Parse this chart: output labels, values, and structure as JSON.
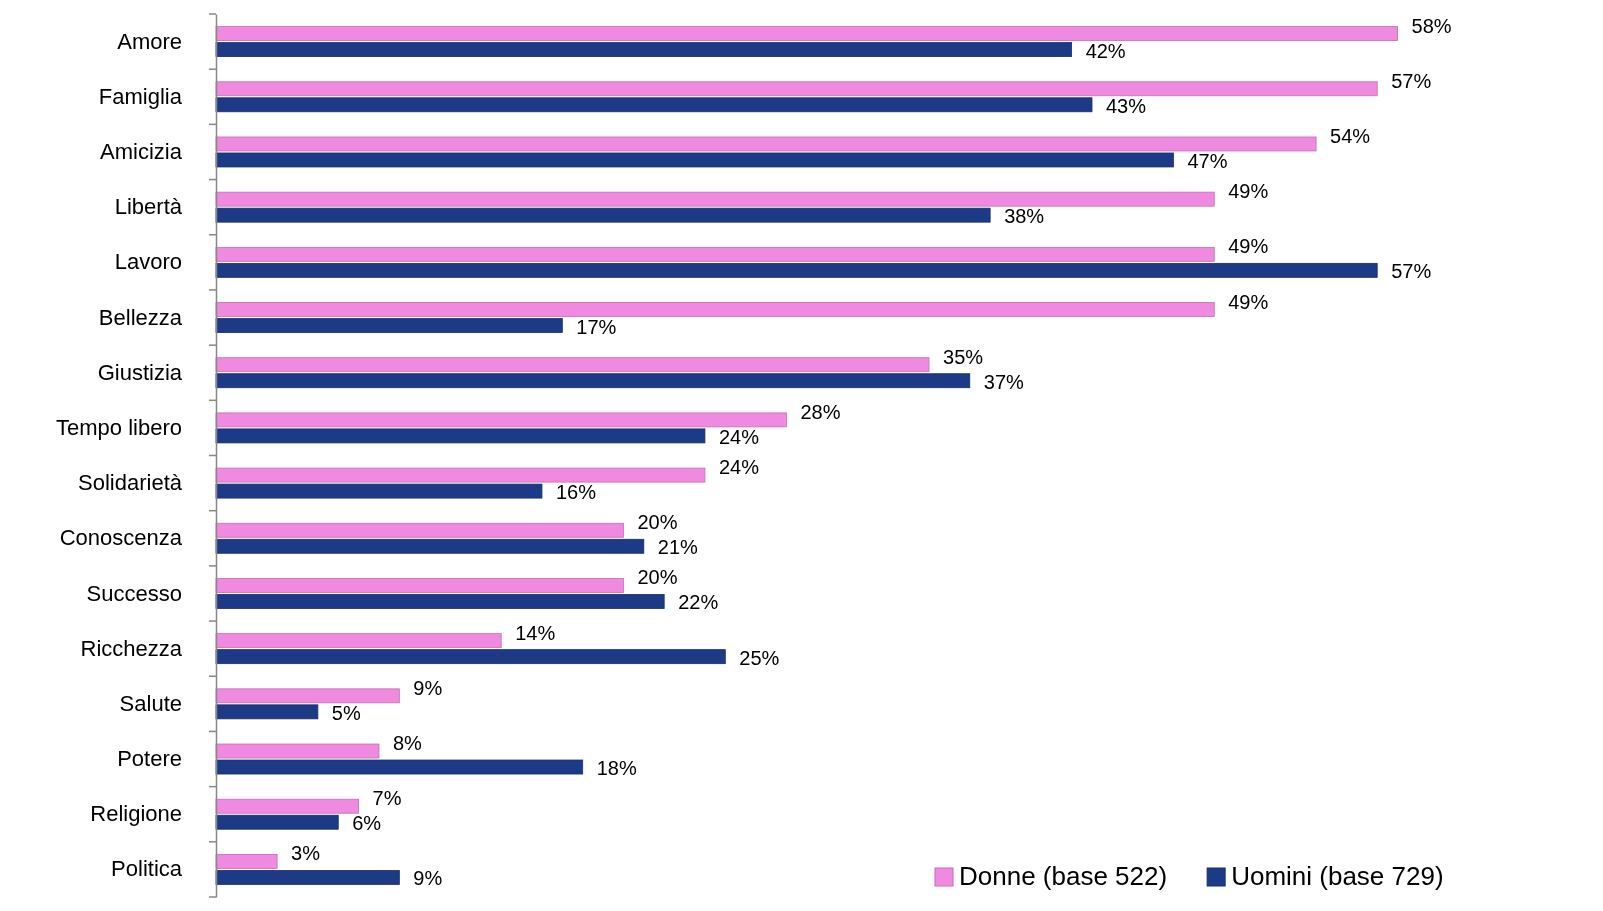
{
  "chart_data": {
    "type": "bar",
    "orientation": "horizontal",
    "categories": [
      "Amore",
      "Famiglia",
      "Amicizia",
      "Libertà",
      "Lavoro",
      "Bellezza",
      "Giustizia",
      "Tempo libero",
      "Solidarietà",
      "Conoscenza",
      "Successo",
      "Ricchezza",
      "Salute",
      "Potere",
      "Religione",
      "Politica"
    ],
    "series": [
      {
        "name": "Donne (base 522)",
        "color": "#f08ae0",
        "values": [
          58,
          57,
          54,
          49,
          49,
          49,
          35,
          28,
          24,
          20,
          20,
          14,
          9,
          8,
          7,
          3
        ],
        "value_labels": [
          "58%",
          "57%",
          "54%",
          "49%",
          "49%",
          "49%",
          "35%",
          "28%",
          "24%",
          "20%",
          "20%",
          "14%",
          "9%",
          "8%",
          "7%",
          "3%"
        ]
      },
      {
        "name": "Uomini (base 729)",
        "color": "#1d3a87",
        "values": [
          42,
          43,
          47,
          38,
          57,
          17,
          37,
          24,
          16,
          21,
          22,
          25,
          5,
          18,
          6,
          9
        ],
        "value_labels": [
          "42%",
          "43%",
          "47%",
          "38%",
          "57%",
          "17%",
          "37%",
          "24%",
          "16%",
          "21%",
          "22%",
          "25%",
          "5%",
          "18%",
          "6%",
          "9%"
        ]
      }
    ],
    "tick_labels": "y",
    "legend": "bottom right",
    "grid": false
  }
}
